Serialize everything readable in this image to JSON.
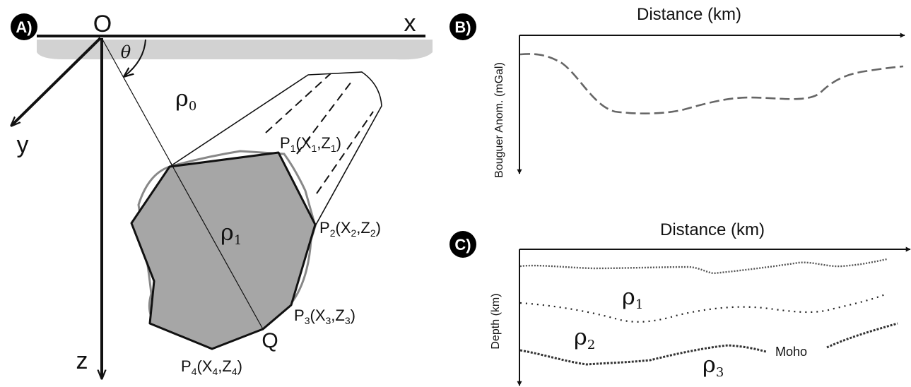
{
  "panel_a": {
    "badge": "A)",
    "origin": "O",
    "x_axis": "x",
    "y_axis": "y",
    "z_axis": "z",
    "angle": "θ",
    "rho0": "ρ",
    "rho0_sub": "0",
    "rho1": "ρ",
    "rho1_sub": "1",
    "point_q": "Q",
    "points": [
      {
        "p": "P",
        "i": "1",
        "x": "X",
        "z": "Z"
      },
      {
        "p": "P",
        "i": "2",
        "x": "X",
        "z": "Z"
      },
      {
        "p": "P",
        "i": "3",
        "x": "X",
        "z": "Z"
      },
      {
        "p": "P",
        "i": "4",
        "x": "X",
        "z": "Z"
      }
    ]
  },
  "panel_b": {
    "badge": "B)",
    "xlabel": "Distance (km)",
    "ylabel": "Bouguer Anom. (mGal)"
  },
  "panel_c": {
    "badge": "C)",
    "xlabel": "Distance (km)",
    "ylabel": "Depth (km)",
    "rho1": "ρ",
    "rho1_sub": "1",
    "rho2": "ρ",
    "rho2_sub": "2",
    "rho3": "ρ",
    "rho3_sub": "3",
    "moho": "Moho"
  },
  "colors": {
    "body_fill": "#a6a6a6",
    "ground": "#d2d2d2",
    "ink": "#111111",
    "curve": "#666666"
  }
}
